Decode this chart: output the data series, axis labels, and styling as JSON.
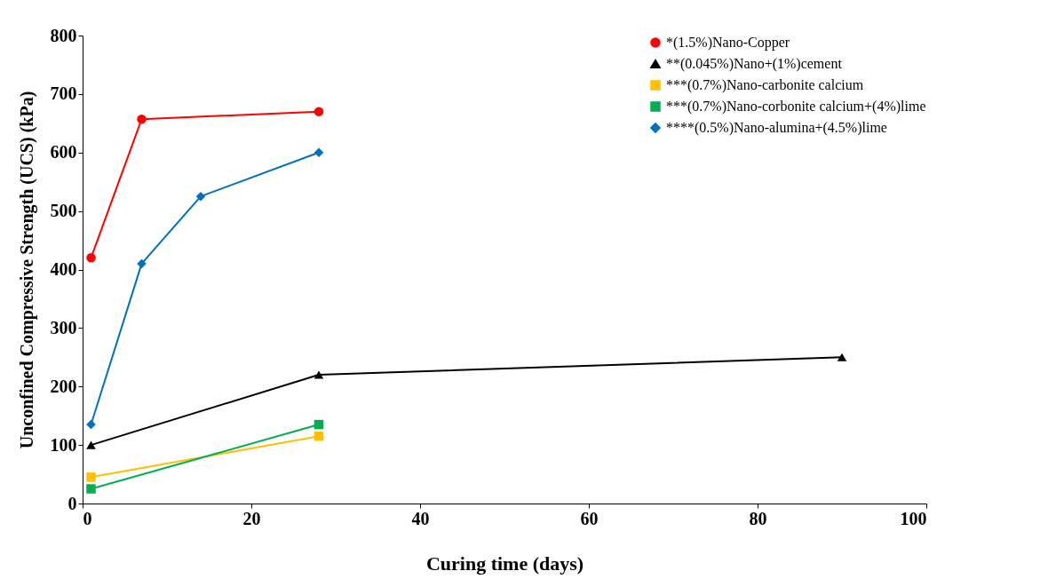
{
  "chart_data": {
    "type": "line",
    "xlabel": "Curing time (days)",
    "ylabel": "Unconfined Compressive Strength (UCS) (kPa)",
    "xlim": [
      0,
      100
    ],
    "xticks": [
      0,
      20,
      40,
      60,
      80,
      100
    ],
    "ylim": [
      0,
      800
    ],
    "yticks": [
      0,
      100,
      200,
      300,
      400,
      500,
      600,
      700,
      800
    ],
    "grid": false,
    "legend": "top right",
    "line_style": "solid",
    "series": [
      {
        "name": "*(1.5%)Nano-Copper",
        "color": "#ff0000",
        "marker": "circle",
        "x": [
          1,
          7,
          28
        ],
        "values": [
          420,
          657,
          670
        ]
      },
      {
        "name": "**(0.045%)Nano+(1%)cement",
        "color": "#000000",
        "marker": "triangle",
        "x": [
          1,
          28,
          90
        ],
        "values": [
          100,
          220,
          250
        ]
      },
      {
        "name": "***(0.7%)Nano-carbonite calcium",
        "color": "#ffc000",
        "marker": "square",
        "x": [
          1,
          28
        ],
        "values": [
          45,
          115
        ]
      },
      {
        "name": "***(0.7%)Nano-corbonite calcium+(4%)lime",
        "color": "#00b050",
        "marker": "square",
        "x": [
          1,
          28
        ],
        "values": [
          25,
          135
        ]
      },
      {
        "name": "****(0.5%)Nano-alumina+(4.5%)lime",
        "color": "#0070c0",
        "marker": "diamond",
        "x": [
          1,
          7,
          14,
          28
        ],
        "values": [
          135,
          410,
          525,
          600
        ]
      }
    ]
  }
}
